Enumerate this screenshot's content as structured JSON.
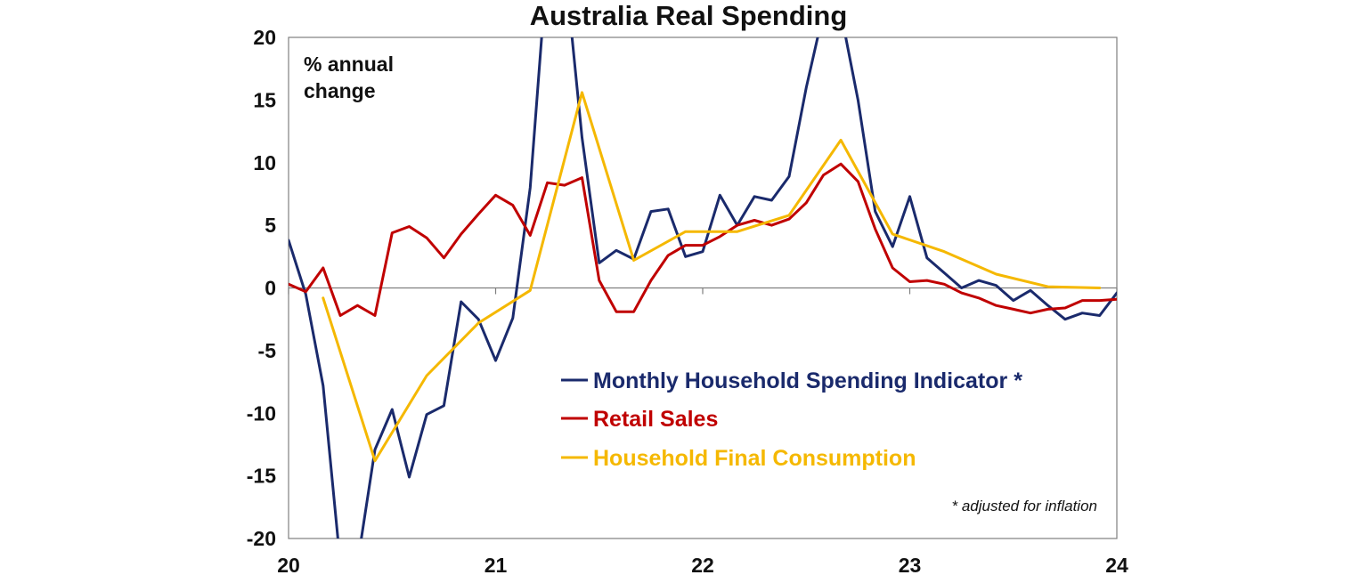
{
  "chart_data": {
    "type": "line",
    "title": "Australia Real Spending",
    "ylabel_lines": [
      "% annual",
      "change"
    ],
    "xlabel": "",
    "ylim": [
      -20,
      20
    ],
    "yticks": [
      20,
      15,
      10,
      5,
      0,
      -5,
      -10,
      -15,
      -20
    ],
    "xlim": [
      2020,
      2024
    ],
    "xticks": [
      {
        "value": 2020,
        "label": "20"
      },
      {
        "value": 2021,
        "label": "21"
      },
      {
        "value": 2022,
        "label": "22"
      },
      {
        "value": 2023,
        "label": "23"
      },
      {
        "value": 2024,
        "label": "24"
      }
    ],
    "grid": false,
    "legend_position": "lower-center",
    "footnote": "* adjusted for inflation",
    "series": [
      {
        "name": "Monthly Household Spending Indicator *",
        "color": "#1a2a6c",
        "x": [
          2020.0,
          2020.083,
          2020.167,
          2020.25,
          2020.333,
          2020.417,
          2020.5,
          2020.583,
          2020.667,
          2020.75,
          2020.833,
          2020.917,
          2021.0,
          2021.083,
          2021.167,
          2021.25,
          2021.333,
          2021.417,
          2021.5,
          2021.583,
          2021.667,
          2021.75,
          2021.833,
          2021.917,
          2022.0,
          2022.083,
          2022.167,
          2022.25,
          2022.333,
          2022.417,
          2022.5,
          2022.583,
          2022.667,
          2022.75,
          2022.833,
          2022.917,
          2023.0,
          2023.083,
          2023.167,
          2023.25,
          2023.333,
          2023.417,
          2023.5,
          2023.583,
          2023.667,
          2023.75,
          2023.833,
          2023.917,
          2024.0
        ],
        "values": [
          3.8,
          -0.5,
          -7.8,
          -22.0,
          -22.0,
          -12.9,
          -9.7,
          -15.1,
          -10.1,
          -9.4,
          -1.1,
          -2.5,
          -5.8,
          -2.4,
          8.0,
          26.0,
          26.0,
          12.0,
          2.0,
          3.0,
          2.3,
          6.1,
          6.3,
          2.5,
          2.9,
          7.4,
          5.0,
          7.3,
          7.0,
          8.9,
          16.0,
          22.0,
          22.0,
          15.0,
          6.1,
          3.3,
          7.3,
          2.4,
          1.2,
          0.0,
          0.6,
          0.2,
          -1.0,
          -0.2,
          -1.4,
          -2.5,
          -2.0,
          -2.2,
          -0.4
        ]
      },
      {
        "name": "Retail Sales",
        "color": "#c00000",
        "x": [
          2020.0,
          2020.083,
          2020.167,
          2020.25,
          2020.333,
          2020.417,
          2020.5,
          2020.583,
          2020.667,
          2020.75,
          2020.833,
          2020.917,
          2021.0,
          2021.083,
          2021.167,
          2021.25,
          2021.333,
          2021.417,
          2021.5,
          2021.583,
          2021.667,
          2021.75,
          2021.833,
          2021.917,
          2022.0,
          2022.083,
          2022.167,
          2022.25,
          2022.333,
          2022.417,
          2022.5,
          2022.583,
          2022.667,
          2022.75,
          2022.833,
          2022.917,
          2023.0,
          2023.083,
          2023.167,
          2023.25,
          2023.333,
          2023.417,
          2023.5,
          2023.583,
          2023.667,
          2023.75,
          2023.833,
          2023.917,
          2024.0
        ],
        "values": [
          0.3,
          -0.3,
          1.6,
          -2.2,
          -1.4,
          -2.2,
          4.4,
          4.9,
          4.0,
          2.4,
          4.3,
          5.9,
          7.4,
          6.6,
          4.2,
          8.4,
          8.2,
          8.8,
          0.6,
          -1.9,
          -1.9,
          0.6,
          2.6,
          3.4,
          3.4,
          4.1,
          5.0,
          5.4,
          5.0,
          5.5,
          6.8,
          9.0,
          9.9,
          8.5,
          4.7,
          1.6,
          0.5,
          0.6,
          0.3,
          -0.4,
          -0.8,
          -1.4,
          -1.7,
          -2.0,
          -1.7,
          -1.6,
          -1.0,
          -1.0,
          -0.9
        ]
      },
      {
        "name": "Household Final Consumption",
        "color": "#f5b800",
        "x": [
          2020.167,
          2020.417,
          2020.667,
          2020.917,
          2021.167,
          2021.417,
          2021.667,
          2021.917,
          2022.167,
          2022.417,
          2022.667,
          2022.917,
          2023.167,
          2023.417,
          2023.667,
          2023.917
        ],
        "values": [
          -0.8,
          -13.8,
          -7.0,
          -2.8,
          -0.2,
          15.6,
          2.2,
          4.5,
          4.5,
          5.8,
          11.8,
          4.3,
          2.9,
          1.1,
          0.1,
          0.0
        ]
      }
    ]
  }
}
